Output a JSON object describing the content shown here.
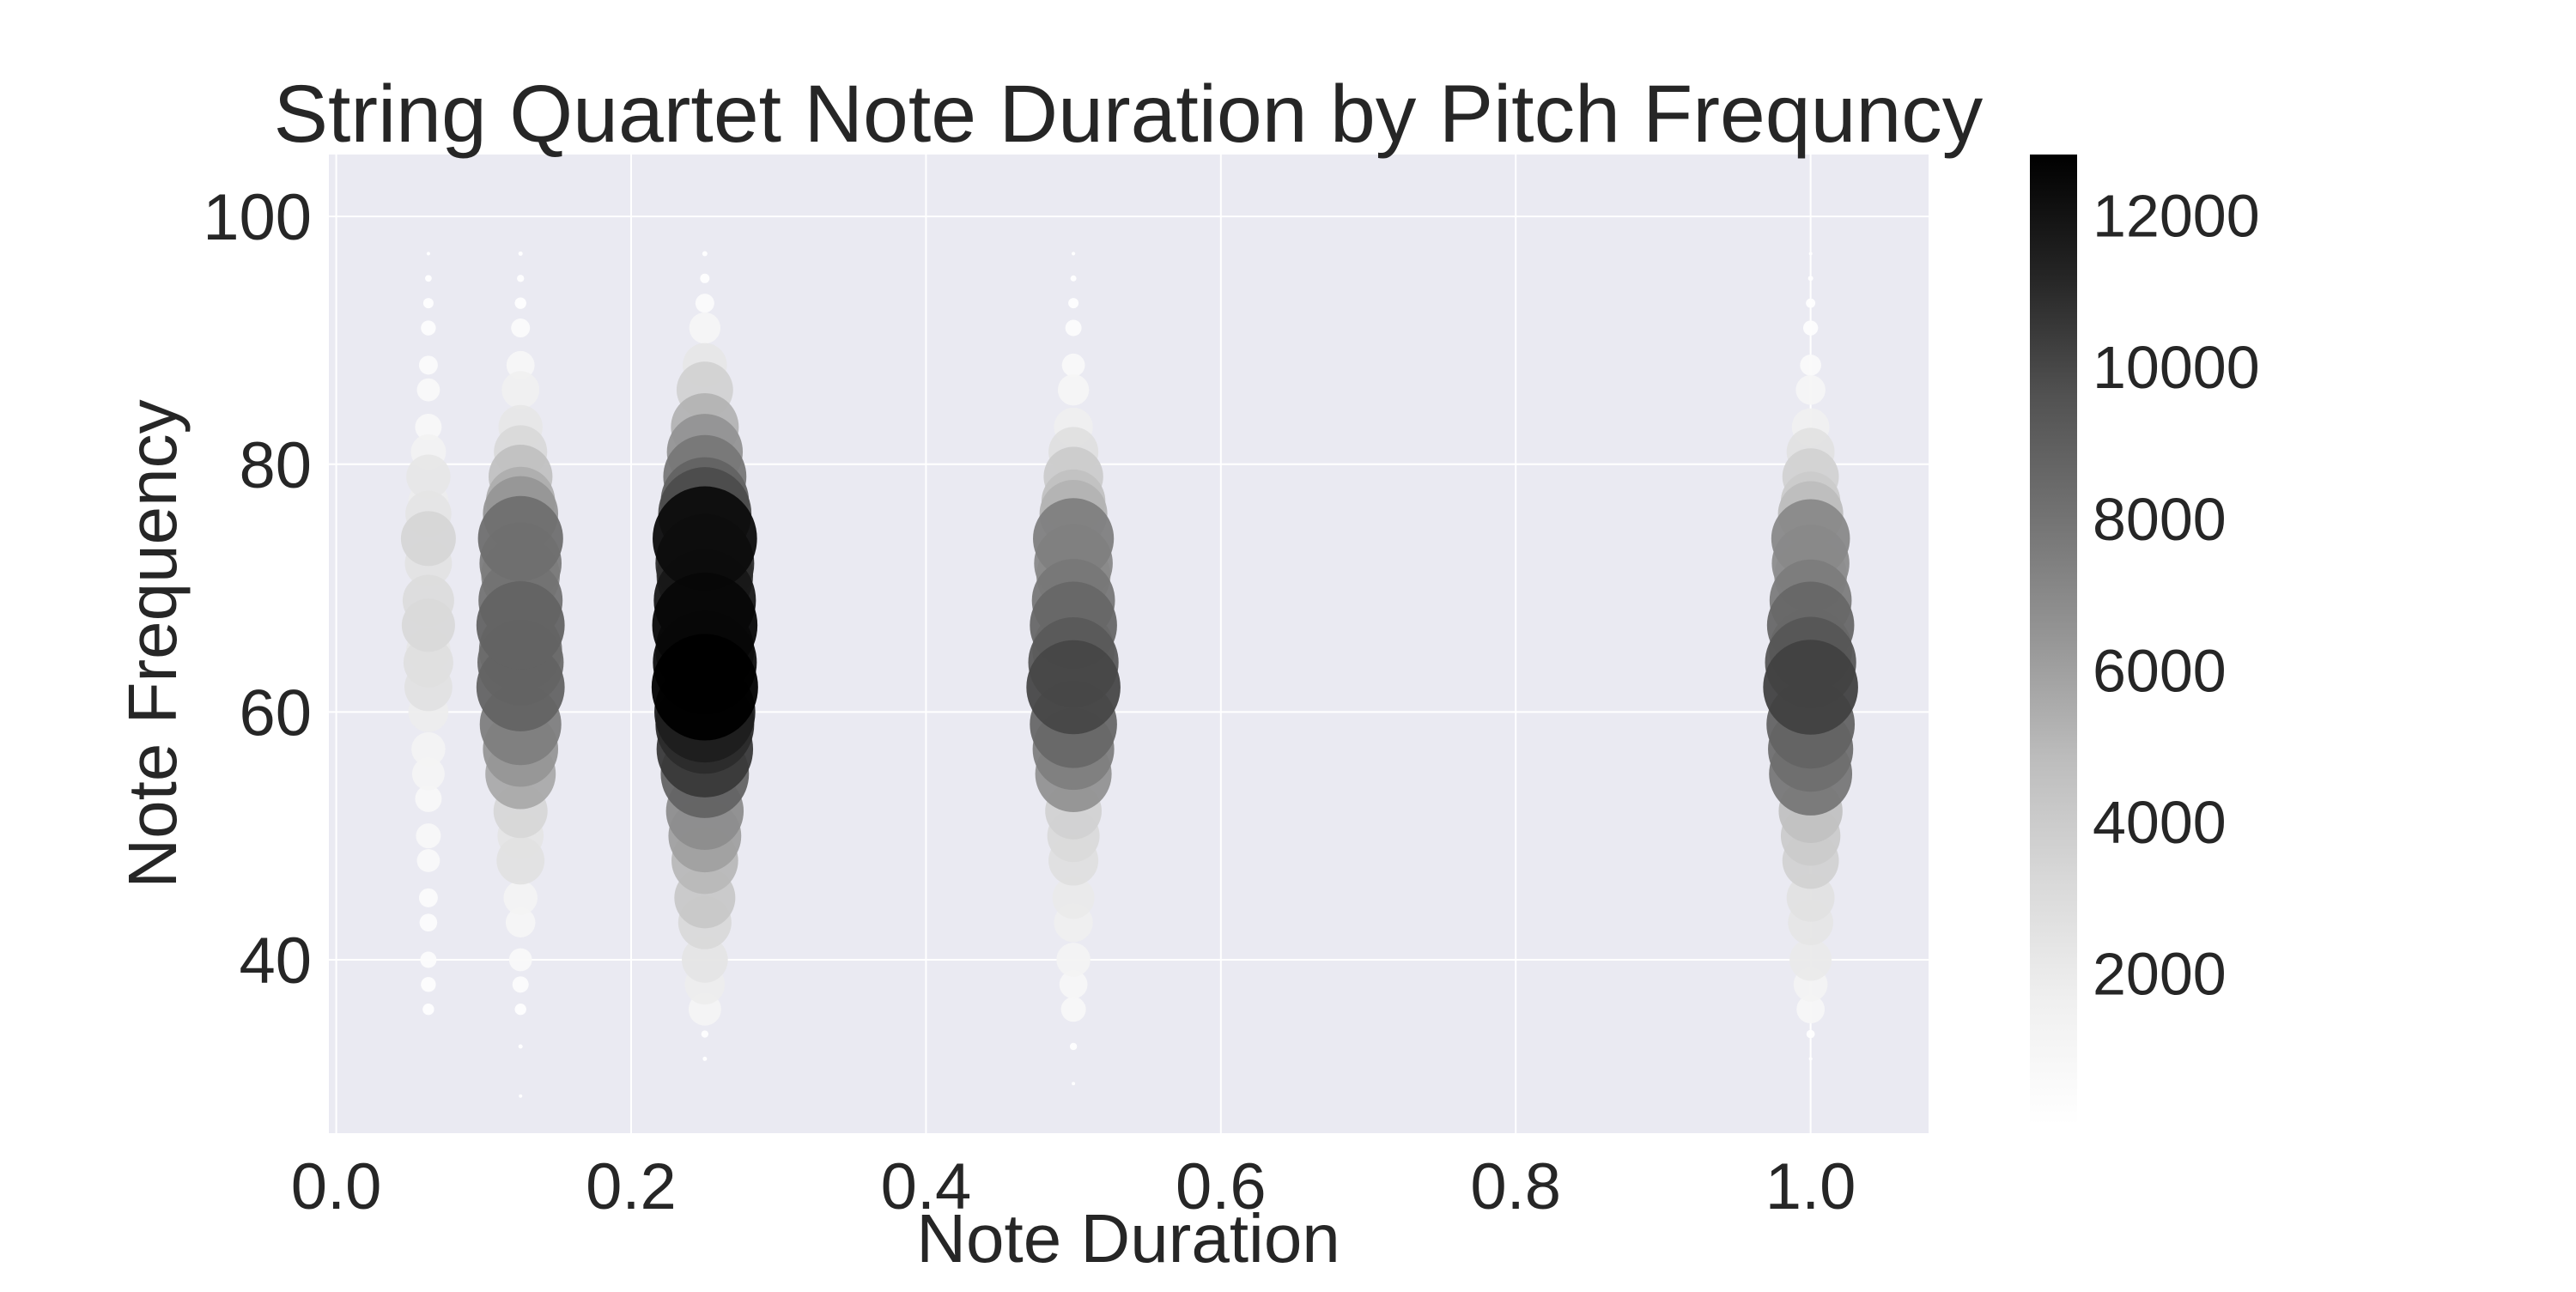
{
  "chart_data": {
    "type": "scatter",
    "title": "String Quartet Note Duration by Pitch Frequncy",
    "xlabel": "Note Duration",
    "ylabel": "Note Frequency",
    "xlim": [
      -0.005,
      1.08
    ],
    "ylim": [
      26,
      105
    ],
    "x_ticks": [
      0.0,
      0.2,
      0.4,
      0.6,
      0.8,
      1.0
    ],
    "x_tick_labels": [
      "0.0",
      "0.2",
      "0.4",
      "0.6",
      "0.8",
      "1.0"
    ],
    "y_ticks": [
      40,
      60,
      80,
      100
    ],
    "y_tick_labels": [
      "40",
      "60",
      "80",
      "100"
    ],
    "grid": true,
    "plot_background": "#eaeaf2",
    "colormap": "Greys",
    "color_encoding": "count",
    "size_encoding": "count",
    "colorbar": {
      "range": [
        0,
        12800
      ],
      "ticks": [
        2000,
        4000,
        6000,
        8000,
        10000,
        12000
      ],
      "tick_labels": [
        "2000",
        "4000",
        "6000",
        "8000",
        "10000",
        "12000"
      ]
    },
    "groups": [
      {
        "x": 0.0625,
        "points": [
          {
            "y": 36,
            "count": 150
          },
          {
            "y": 38,
            "count": 250
          },
          {
            "y": 40,
            "count": 300
          },
          {
            "y": 43,
            "count": 350
          },
          {
            "y": 45,
            "count": 400
          },
          {
            "y": 48,
            "count": 600
          },
          {
            "y": 50,
            "count": 700
          },
          {
            "y": 53,
            "count": 800
          },
          {
            "y": 55,
            "count": 1200
          },
          {
            "y": 57,
            "count": 1300
          },
          {
            "y": 60,
            "count": 1800
          },
          {
            "y": 62,
            "count": 2600
          },
          {
            "y": 64,
            "count": 2800
          },
          {
            "y": 65,
            "count": 2200
          },
          {
            "y": 67,
            "count": 3200
          },
          {
            "y": 69,
            "count": 3000
          },
          {
            "y": 72,
            "count": 2500
          },
          {
            "y": 74,
            "count": 3400
          },
          {
            "y": 76,
            "count": 2400
          },
          {
            "y": 77,
            "count": 1800
          },
          {
            "y": 79,
            "count": 2200
          },
          {
            "y": 81,
            "count": 1400
          },
          {
            "y": 83,
            "count": 800
          },
          {
            "y": 86,
            "count": 600
          },
          {
            "y": 88,
            "count": 400
          },
          {
            "y": 91,
            "count": 250
          },
          {
            "y": 93,
            "count": 120
          },
          {
            "y": 95,
            "count": 50
          },
          {
            "y": 97,
            "count": 15
          }
        ]
      },
      {
        "x": 0.125,
        "points": [
          {
            "y": 29,
            "count": 10
          },
          {
            "y": 33,
            "count": 20
          },
          {
            "y": 36,
            "count": 150
          },
          {
            "y": 38,
            "count": 300
          },
          {
            "y": 40,
            "count": 600
          },
          {
            "y": 43,
            "count": 1000
          },
          {
            "y": 45,
            "count": 1300
          },
          {
            "y": 48,
            "count": 2600
          },
          {
            "y": 50,
            "count": 2400
          },
          {
            "y": 52,
            "count": 3300
          },
          {
            "y": 55,
            "count": 5600
          },
          {
            "y": 57,
            "count": 6400
          },
          {
            "y": 59,
            "count": 7500
          },
          {
            "y": 62,
            "count": 8800
          },
          {
            "y": 64,
            "count": 8400
          },
          {
            "y": 65,
            "count": 7800
          },
          {
            "y": 67,
            "count": 8800
          },
          {
            "y": 69,
            "count": 8000
          },
          {
            "y": 71,
            "count": 7000
          },
          {
            "y": 72,
            "count": 7600
          },
          {
            "y": 74,
            "count": 8200
          },
          {
            "y": 76,
            "count": 6400
          },
          {
            "y": 77,
            "count": 5400
          },
          {
            "y": 79,
            "count": 4600
          },
          {
            "y": 81,
            "count": 3200
          },
          {
            "y": 83,
            "count": 2200
          },
          {
            "y": 86,
            "count": 1600
          },
          {
            "y": 88,
            "count": 900
          },
          {
            "y": 91,
            "count": 400
          },
          {
            "y": 93,
            "count": 150
          },
          {
            "y": 95,
            "count": 60
          },
          {
            "y": 97,
            "count": 20
          }
        ]
      },
      {
        "x": 0.25,
        "points": [
          {
            "y": 32,
            "count": 20
          },
          {
            "y": 34,
            "count": 60
          },
          {
            "y": 36,
            "count": 1200
          },
          {
            "y": 38,
            "count": 1800
          },
          {
            "y": 40,
            "count": 2400
          },
          {
            "y": 43,
            "count": 3200
          },
          {
            "y": 45,
            "count": 4200
          },
          {
            "y": 48,
            "count": 5000
          },
          {
            "y": 50,
            "count": 6000
          },
          {
            "y": 52,
            "count": 6800
          },
          {
            "y": 55,
            "count": 8800
          },
          {
            "y": 57,
            "count": 10500
          },
          {
            "y": 59,
            "count": 11000
          },
          {
            "y": 60,
            "count": 11500
          },
          {
            "y": 62,
            "count": 12800
          },
          {
            "y": 64,
            "count": 12200
          },
          {
            "y": 65,
            "count": 11000
          },
          {
            "y": 67,
            "count": 12500
          },
          {
            "y": 69,
            "count": 11800
          },
          {
            "y": 71,
            "count": 10500
          },
          {
            "y": 72,
            "count": 11000
          },
          {
            "y": 74,
            "count": 12300
          },
          {
            "y": 76,
            "count": 9800
          },
          {
            "y": 77,
            "count": 8800
          },
          {
            "y": 79,
            "count": 7800
          },
          {
            "y": 81,
            "count": 6500
          },
          {
            "y": 83,
            "count": 5200
          },
          {
            "y": 86,
            "count": 3600
          },
          {
            "y": 88,
            "count": 2200
          },
          {
            "y": 91,
            "count": 1100
          },
          {
            "y": 93,
            "count": 400
          },
          {
            "y": 95,
            "count": 100
          },
          {
            "y": 97,
            "count": 30
          }
        ]
      },
      {
        "x": 0.5,
        "points": [
          {
            "y": 30,
            "count": 10
          },
          {
            "y": 33,
            "count": 60
          },
          {
            "y": 36,
            "count": 700
          },
          {
            "y": 38,
            "count": 900
          },
          {
            "y": 40,
            "count": 1300
          },
          {
            "y": 43,
            "count": 1700
          },
          {
            "y": 45,
            "count": 2000
          },
          {
            "y": 48,
            "count": 2800
          },
          {
            "y": 50,
            "count": 3100
          },
          {
            "y": 52,
            "count": 3600
          },
          {
            "y": 55,
            "count": 6600
          },
          {
            "y": 57,
            "count": 7500
          },
          {
            "y": 59,
            "count": 8600
          },
          {
            "y": 62,
            "count": 10000
          },
          {
            "y": 64,
            "count": 9200
          },
          {
            "y": 65,
            "count": 7600
          },
          {
            "y": 67,
            "count": 8600
          },
          {
            "y": 69,
            "count": 7800
          },
          {
            "y": 71,
            "count": 6200
          },
          {
            "y": 72,
            "count": 7000
          },
          {
            "y": 74,
            "count": 7400
          },
          {
            "y": 76,
            "count": 5200
          },
          {
            "y": 77,
            "count": 4600
          },
          {
            "y": 79,
            "count": 4000
          },
          {
            "y": 81,
            "count": 2800
          },
          {
            "y": 83,
            "count": 1700
          },
          {
            "y": 86,
            "count": 1100
          },
          {
            "y": 88,
            "count": 600
          },
          {
            "y": 91,
            "count": 300
          },
          {
            "y": 93,
            "count": 120
          },
          {
            "y": 95,
            "count": 40
          },
          {
            "y": 97,
            "count": 15
          }
        ]
      },
      {
        "x": 1.0,
        "points": [
          {
            "y": 32,
            "count": 15
          },
          {
            "y": 34,
            "count": 80
          },
          {
            "y": 36,
            "count": 900
          },
          {
            "y": 38,
            "count": 1300
          },
          {
            "y": 40,
            "count": 2000
          },
          {
            "y": 43,
            "count": 2300
          },
          {
            "y": 45,
            "count": 2600
          },
          {
            "y": 48,
            "count": 3600
          },
          {
            "y": 50,
            "count": 4000
          },
          {
            "y": 52,
            "count": 4600
          },
          {
            "y": 55,
            "count": 7800
          },
          {
            "y": 57,
            "count": 8200
          },
          {
            "y": 59,
            "count": 8800
          },
          {
            "y": 62,
            "count": 10200
          },
          {
            "y": 64,
            "count": 9400
          },
          {
            "y": 65,
            "count": 7800
          },
          {
            "y": 67,
            "count": 8600
          },
          {
            "y": 69,
            "count": 7600
          },
          {
            "y": 71,
            "count": 6000
          },
          {
            "y": 72,
            "count": 6800
          },
          {
            "y": 74,
            "count": 7000
          },
          {
            "y": 76,
            "count": 4800
          },
          {
            "y": 77,
            "count": 4000
          },
          {
            "y": 79,
            "count": 3600
          },
          {
            "y": 81,
            "count": 2600
          },
          {
            "y": 83,
            "count": 1600
          },
          {
            "y": 86,
            "count": 1000
          },
          {
            "y": 88,
            "count": 500
          },
          {
            "y": 91,
            "count": 250
          },
          {
            "y": 93,
            "count": 100
          },
          {
            "y": 95,
            "count": 30
          },
          {
            "y": 97,
            "count": 10
          }
        ]
      }
    ]
  }
}
